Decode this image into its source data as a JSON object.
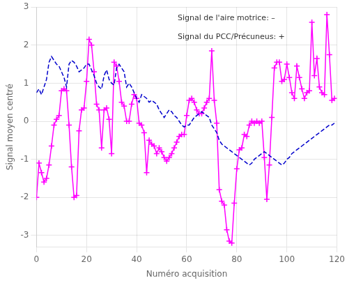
{
  "chart_data": {
    "type": "line",
    "xlabel": "Numéro acquisition",
    "ylabel": "Signal moyen centré",
    "x": [
      0,
      1,
      2,
      3,
      4,
      5,
      6,
      7,
      8,
      9,
      10,
      11,
      12,
      13,
      14,
      15,
      16,
      17,
      18,
      19,
      20,
      21,
      22,
      23,
      24,
      25,
      26,
      27,
      28,
      29,
      30,
      31,
      32,
      33,
      34,
      35,
      36,
      37,
      38,
      39,
      40,
      41,
      42,
      43,
      44,
      45,
      46,
      47,
      48,
      49,
      50,
      51,
      52,
      53,
      54,
      55,
      56,
      57,
      58,
      59,
      60,
      61,
      62,
      63,
      64,
      65,
      66,
      67,
      68,
      69,
      70,
      71,
      72,
      73,
      74,
      75,
      76,
      77,
      78,
      79,
      80,
      81,
      82,
      83,
      84,
      85,
      86,
      87,
      88,
      89,
      90,
      91,
      92,
      93,
      94,
      95,
      96,
      97,
      98,
      99,
      100,
      101,
      102,
      103,
      104,
      105,
      106,
      107,
      108,
      109,
      110,
      111,
      112,
      113,
      114,
      115,
      116,
      117,
      118,
      119
    ],
    "series": [
      {
        "color": "#0000CC",
        "line_style": "dashed",
        "marker": "none",
        "values": [
          0.75,
          0.85,
          0.7,
          0.9,
          1.1,
          1.55,
          1.7,
          1.6,
          1.5,
          1.45,
          1.3,
          1.15,
          0.9,
          1.5,
          1.6,
          1.55,
          1.45,
          1.3,
          1.35,
          1.4,
          1.5,
          1.5,
          1.35,
          1.2,
          1.0,
          0.9,
          0.85,
          1.2,
          1.35,
          1.1,
          1.0,
          0.95,
          1.4,
          1.5,
          1.4,
          1.3,
          0.9,
          1.0,
          0.9,
          0.75,
          0.6,
          0.5,
          0.7,
          0.65,
          0.6,
          0.5,
          0.55,
          0.5,
          0.45,
          0.3,
          0.2,
          0.1,
          0.2,
          0.3,
          0.25,
          0.15,
          0.1,
          0.0,
          -0.1,
          -0.15,
          -0.1,
          -0.1,
          0.0,
          0.1,
          0.15,
          0.2,
          0.25,
          0.2,
          0.15,
          0.1,
          -0.1,
          -0.2,
          -0.3,
          -0.5,
          -0.6,
          -0.65,
          -0.7,
          -0.75,
          -0.8,
          -0.85,
          -0.9,
          -0.95,
          -1.0,
          -1.05,
          -1.1,
          -1.15,
          -1.1,
          -1.0,
          -0.95,
          -0.9,
          -0.85,
          -0.8,
          -0.85,
          -0.9,
          -0.95,
          -1.0,
          -1.05,
          -1.1,
          -1.15,
          -1.1,
          -1.0,
          -0.95,
          -0.85,
          -0.8,
          -0.75,
          -0.7,
          -0.65,
          -0.6,
          -0.55,
          -0.5,
          -0.45,
          -0.4,
          -0.35,
          -0.3,
          -0.25,
          -0.2,
          -0.15,
          -0.1,
          -0.1,
          -0.05
        ]
      },
      {
        "color": "#FF00FF",
        "line_style": "solid",
        "marker": "plus",
        "values": [
          -2.0,
          -1.1,
          -1.35,
          -1.6,
          -1.5,
          -1.15,
          -0.65,
          -0.1,
          0.05,
          0.15,
          0.8,
          0.85,
          0.8,
          -0.1,
          -1.2,
          -2.0,
          -1.95,
          -0.25,
          0.3,
          0.35,
          1.05,
          2.15,
          2.0,
          1.3,
          0.45,
          0.3,
          -0.7,
          0.3,
          0.35,
          0.05,
          -0.85,
          1.55,
          1.45,
          1.05,
          0.5,
          0.4,
          0.0,
          0.0,
          0.45,
          0.7,
          0.6,
          -0.05,
          -0.1,
          -0.3,
          -1.35,
          -0.5,
          -0.6,
          -0.65,
          -0.85,
          -0.7,
          -0.8,
          -0.95,
          -1.05,
          -0.95,
          -0.85,
          -0.7,
          -0.55,
          -0.4,
          -0.35,
          -0.35,
          0.15,
          0.55,
          0.6,
          0.5,
          0.3,
          0.2,
          0.2,
          0.35,
          0.5,
          0.6,
          1.85,
          0.55,
          -0.05,
          -1.8,
          -2.1,
          -2.2,
          -2.85,
          -3.15,
          -3.2,
          -2.15,
          -1.25,
          -0.75,
          -0.7,
          -0.35,
          -0.4,
          -0.1,
          0.0,
          -0.05,
          0.0,
          -0.05,
          0.0,
          -0.95,
          -2.05,
          -1.15,
          0.1,
          1.4,
          1.55,
          1.55,
          1.05,
          1.1,
          1.5,
          1.15,
          0.75,
          0.6,
          1.45,
          1.15,
          0.85,
          0.6,
          0.75,
          0.8,
          2.6,
          1.2,
          1.65,
          0.9,
          0.75,
          0.7,
          2.8,
          1.75,
          0.55,
          0.6
        ]
      }
    ],
    "xlim": [
      0,
      120
    ],
    "ylim": [
      -3.3,
      3.0
    ],
    "xticks": [
      0,
      20,
      40,
      60,
      80,
      100,
      120
    ],
    "yticks": [
      -3,
      -2,
      -1,
      0,
      1,
      2,
      3
    ],
    "grid": true,
    "annotations": [
      "Signal de l'aire motrice: –",
      "Signal du PCC/Précuneus: +"
    ]
  }
}
